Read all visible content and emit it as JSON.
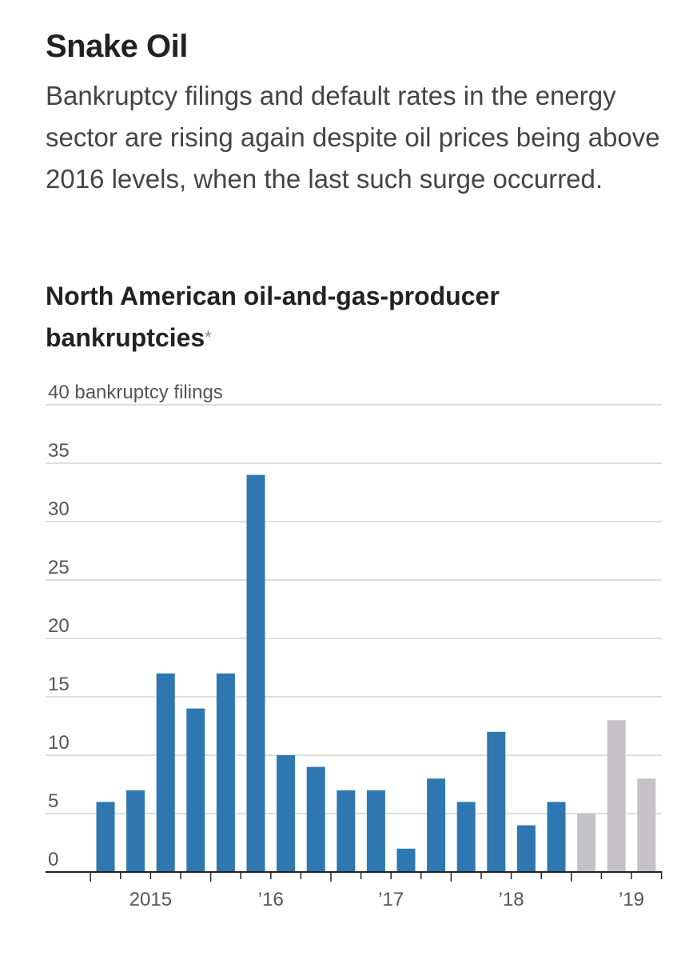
{
  "chart_data": {
    "type": "bar",
    "title": "Snake Oil",
    "subtitle": "Bankruptcy filings and default rates in the energy sector are rising again despite oil prices being above 2016 levels, when the last such surge occurred.",
    "chart_title": "North American oil-and-gas-producer bankruptcies",
    "chart_title_note": "*",
    "ylabel": "bankruptcy filings",
    "ylim": [
      0,
      40
    ],
    "yticks": [
      0,
      5,
      10,
      15,
      20,
      25,
      30,
      35,
      40
    ],
    "ytick_labels": [
      "0",
      "5",
      "10",
      "15",
      "20",
      "25",
      "30",
      "35",
      "40 bankruptcy filings"
    ],
    "xtick_labels": [
      "2015",
      "’16",
      "’17",
      "’18",
      "’19"
    ],
    "categories": [
      "2015 Q1",
      "2015 Q2",
      "2015 Q3",
      "2015 Q4",
      "2016 Q1",
      "2016 Q2",
      "2016 Q3",
      "2016 Q4",
      "2017 Q1",
      "2017 Q2",
      "2017 Q3",
      "2017 Q4",
      "2018 Q1",
      "2018 Q2",
      "2018 Q3",
      "2018 Q4",
      "2019 Q1",
      "2019 Q2",
      "2019 Q3"
    ],
    "values": [
      6,
      7,
      17,
      14,
      17,
      34,
      10,
      9,
      7,
      7,
      2,
      8,
      6,
      12,
      4,
      6,
      5,
      13,
      8
    ],
    "highlight_from_index": 16,
    "grid": true,
    "colors": {
      "primary": "#2e77b0",
      "highlight": "#c4c2c7",
      "grid": "#d4d4d4",
      "axis": "#222222",
      "text": "#555555"
    }
  }
}
